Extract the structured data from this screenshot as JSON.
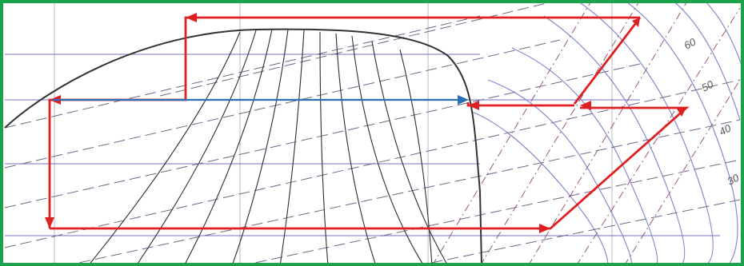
{
  "colors": {
    "border": "#1aa34a",
    "saturation_dome": "#3a3a3a",
    "quality_lines": "#2b2b2b",
    "temperature_curves": "#8080c8",
    "isobars": "#6a6ac0",
    "dashed_isentropes": "#5a5a7a",
    "dashdot_lines": "#8a4a6a",
    "grid": "#b0b0b0",
    "cycle_path": "#e02020",
    "heat_transfer_arrow": "#2a6fb8"
  },
  "isotherm_labels": [
    "60",
    "50",
    "40",
    "30"
  ],
  "icons": {
    "cycle_arrowheads": "arrow-icon"
  }
}
